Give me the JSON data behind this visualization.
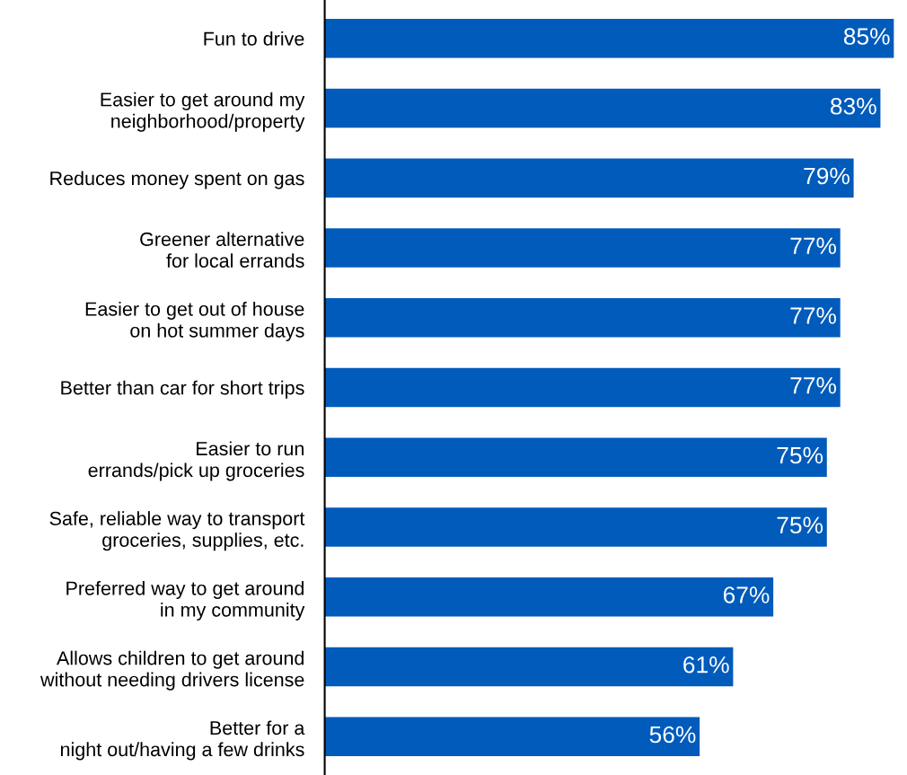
{
  "chart_data": {
    "type": "bar",
    "orientation": "horizontal",
    "categories": [
      "Fun to drive",
      "Easier to get around my\nneighborhood/property",
      "Reduces money spent on gas",
      "Greener alternative\nfor local errands",
      "Easier to get out of house\non hot summer days",
      "Better than car for short trips",
      "Easier to run\nerrands/pick up groceries",
      "Safe, reliable way to transport\ngroceries, supplies, etc.",
      "Preferred way to get around\nin my community",
      "Allows children to get around\nwithout needing drivers license",
      "Better for a\nnight out/having a few drinks"
    ],
    "values": [
      85,
      83,
      79,
      77,
      77,
      77,
      75,
      75,
      67,
      61,
      56
    ],
    "value_labels": [
      "85%",
      "83%",
      "79%",
      "77%",
      "77%",
      "77%",
      "75%",
      "75%",
      "67%",
      "61%",
      "56%"
    ],
    "color": "#005bbb",
    "grid": false,
    "legend": false
  }
}
